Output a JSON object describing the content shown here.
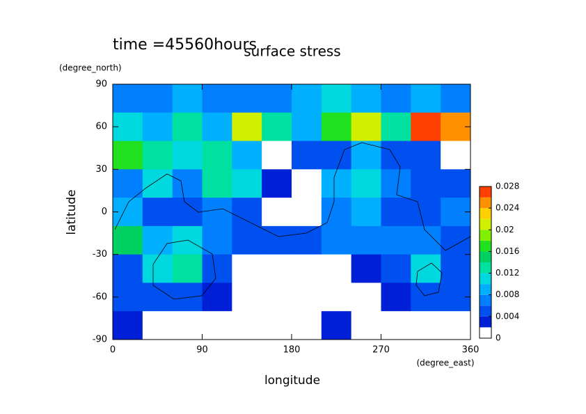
{
  "chart_data": {
    "type": "contour",
    "title": "surface stress",
    "annotation": "time =45560hours",
    "x_label": "longitude",
    "y_label": "latitude",
    "x_units": "(degree_east)",
    "y_units": "(degree_north)",
    "xlim": [
      0,
      360
    ],
    "xticks": [
      0,
      90,
      180,
      270,
      360
    ],
    "ylim": [
      -90,
      90
    ],
    "yticks": [
      -90,
      -60,
      -30,
      0,
      30,
      60,
      90
    ],
    "x": [
      15,
      45,
      75,
      105,
      135,
      165,
      195,
      225,
      255,
      285,
      315,
      345
    ],
    "y": [
      80,
      60,
      40,
      20,
      0,
      -20,
      -40,
      -60,
      -80
    ],
    "z": [
      [
        0.006,
        0.006,
        0.008,
        0.006,
        0.006,
        0.006,
        0.008,
        0.01,
        0.008,
        0.006,
        0.008,
        0.006
      ],
      [
        0.01,
        0.008,
        0.012,
        0.008,
        0.02,
        0.012,
        0.008,
        0.016,
        0.02,
        0.012,
        0.026,
        0.024
      ],
      [
        0.016,
        0.012,
        0.01,
        0.012,
        0.008,
        0,
        0.004,
        0.004,
        0.008,
        0.004,
        0.004,
        0
      ],
      [
        0.006,
        0.01,
        0.006,
        0.012,
        0.01,
        0.002,
        0,
        0.008,
        0.01,
        0.006,
        0.004,
        0.004
      ],
      [
        0.008,
        0.004,
        0.004,
        0.006,
        0.004,
        0,
        0,
        0.006,
        0.008,
        0.004,
        0.004,
        0.006
      ],
      [
        0.014,
        0.008,
        0.01,
        0.006,
        0.004,
        0.004,
        0.004,
        0.006,
        0.006,
        0.006,
        0.006,
        0.004
      ],
      [
        0.004,
        0.01,
        0.012,
        0.004,
        0,
        0,
        0,
        0,
        0.002,
        0.004,
        0.01,
        0.004
      ],
      [
        0.004,
        0.004,
        0.004,
        0.002,
        0,
        0,
        0,
        0,
        0,
        0.002,
        0.004,
        0.004
      ],
      [
        0.002,
        0,
        0,
        0,
        0,
        0,
        0,
        0.002,
        0,
        0,
        0,
        0
      ]
    ],
    "levels": [
      0,
      0.002,
      0.004,
      0.006,
      0.008,
      0.01,
      0.012,
      0.014,
      0.016,
      0.018,
      0.02,
      0.022,
      0.024,
      0.026,
      0.028
    ],
    "colors": [
      "#ffffff",
      "#0020d8",
      "#0050f0",
      "#0080ff",
      "#00b0ff",
      "#00d8e0",
      "#00e0a0",
      "#00d060",
      "#20e020",
      "#80f000",
      "#d0f000",
      "#ffd000",
      "#ff9000",
      "#ff4000"
    ],
    "zticks": [
      0,
      0.004,
      0.008,
      0.012,
      0.016,
      0.02,
      0.024,
      0.028
    ]
  }
}
